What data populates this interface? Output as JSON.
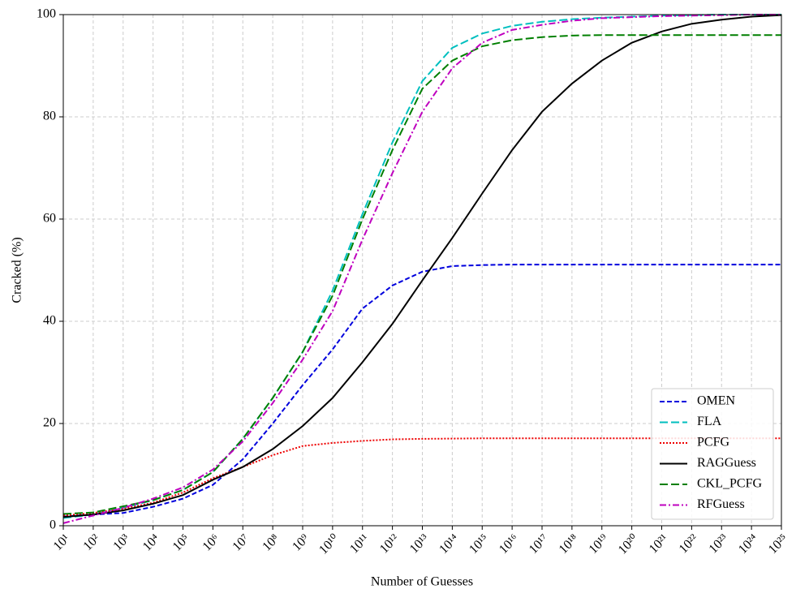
{
  "chart_data": {
    "type": "line",
    "xlabel": "Number of Guesses",
    "ylabel": "Cracked (%)",
    "x": [
      10.0,
      100.0,
      1000.0,
      10000.0,
      100000.0,
      1000000.0,
      10000000.0,
      100000000.0,
      1000000000.0,
      10000000000.0,
      100000000000.0,
      1000000000000.0,
      10000000000000.0,
      100000000000000.0,
      1000000000000000.0,
      1e+16,
      1e+17,
      1e+18,
      1e+19,
      1e+20,
      1e+21,
      1e+22,
      1e+23,
      1e+24,
      1e+25
    ],
    "xscale": "log",
    "xlim": [
      10.0,
      1e+25
    ],
    "xticks": [
      {
        "value": 10.0,
        "label": "10¹"
      },
      {
        "value": 100.0,
        "label": "10²"
      },
      {
        "value": 1000.0,
        "label": "10³"
      },
      {
        "value": 10000.0,
        "label": "10⁴"
      },
      {
        "value": 100000.0,
        "label": "10⁵"
      },
      {
        "value": 1000000.0,
        "label": "10⁶"
      },
      {
        "value": 10000000.0,
        "label": "10⁷"
      },
      {
        "value": 100000000.0,
        "label": "10⁸"
      },
      {
        "value": 1000000000.0,
        "label": "10⁹"
      },
      {
        "value": 10000000000.0,
        "label": "10¹⁰"
      },
      {
        "value": 100000000000.0,
        "label": "10¹¹"
      },
      {
        "value": 1000000000000.0,
        "label": "10¹²"
      },
      {
        "value": 10000000000000.0,
        "label": "10¹³"
      },
      {
        "value": 100000000000000.0,
        "label": "10¹⁴"
      },
      {
        "value": 1000000000000000.0,
        "label": "10¹⁵"
      },
      {
        "value": 1e+16,
        "label": "10¹⁶"
      },
      {
        "value": 1e+17,
        "label": "10¹⁷"
      },
      {
        "value": 1e+18,
        "label": "10¹⁸"
      },
      {
        "value": 1e+19,
        "label": "10¹⁹"
      },
      {
        "value": 1e+20,
        "label": "10²⁰"
      },
      {
        "value": 1e+21,
        "label": "10²¹"
      },
      {
        "value": 1e+22,
        "label": "10²²"
      },
      {
        "value": 1e+23,
        "label": "10²³"
      },
      {
        "value": 1e+24,
        "label": "10²⁴"
      },
      {
        "value": 1e+25,
        "label": "10²⁵"
      }
    ],
    "ylim": [
      0,
      100
    ],
    "yticks": [
      0,
      20,
      40,
      60,
      80,
      100
    ],
    "grid": true,
    "legend": "lower right",
    "series": [
      {
        "name": "OMEN",
        "color": "#0000dd",
        "linestyle": "dashed",
        "values": [
          1.8,
          2.2,
          2.5,
          3.7,
          5.3,
          8,
          13,
          20,
          27.5,
          34.5,
          42.5,
          47,
          49.7,
          50.8,
          51,
          51.1,
          51.1,
          51.1,
          51.1,
          51.1,
          51.1,
          51.1,
          51.1,
          51.1,
          51.1
        ]
      },
      {
        "name": "FLA",
        "color": "#00bfbf",
        "linestyle": "longdash",
        "values": [
          1.5,
          2.2,
          3.5,
          5,
          7,
          10.5,
          17,
          25,
          34,
          46,
          61,
          75,
          87,
          93.5,
          96.3,
          97.8,
          98.6,
          99.1,
          99.4,
          99.6,
          99.8,
          99.9,
          100,
          100,
          100
        ]
      },
      {
        "name": "PCFG",
        "color": "#ee0000",
        "linestyle": "dotted",
        "values": [
          2,
          2.5,
          3.3,
          4.5,
          6.5,
          9.3,
          11.5,
          13.8,
          15.6,
          16.2,
          16.6,
          16.9,
          17,
          17.05,
          17.1,
          17.1,
          17.1,
          17.1,
          17.1,
          17.1,
          17.1,
          17.1,
          17.1,
          17.1,
          17.1
        ]
      },
      {
        "name": "RAGGuess",
        "color": "#000000",
        "linestyle": "solid",
        "values": [
          1.7,
          2.2,
          3,
          4.3,
          6,
          9,
          11.5,
          15,
          19.5,
          25,
          32,
          39.5,
          48,
          56.3,
          65,
          73.5,
          81,
          86.5,
          91,
          94.5,
          96.7,
          98.2,
          99,
          99.6,
          99.9
        ]
      },
      {
        "name": "CKL_PCFG",
        "color": "#007f00",
        "linestyle": "longdash",
        "values": [
          2.3,
          2.6,
          3.8,
          5,
          7,
          10.5,
          17,
          25,
          34,
          45,
          60,
          73.5,
          85.5,
          91,
          93.8,
          95,
          95.6,
          95.9,
          96,
          96,
          96,
          96,
          96,
          96,
          96
        ]
      },
      {
        "name": "RFGuess",
        "color": "#bf00bf",
        "linestyle": "dashdot",
        "values": [
          0.5,
          2,
          3.5,
          5.3,
          7.5,
          11,
          16.5,
          24,
          32.5,
          42,
          56,
          69,
          81,
          89.5,
          94.5,
          97,
          98,
          98.8,
          99.3,
          99.5,
          99.7,
          99.8,
          99.9,
          100,
          100
        ]
      }
    ]
  }
}
